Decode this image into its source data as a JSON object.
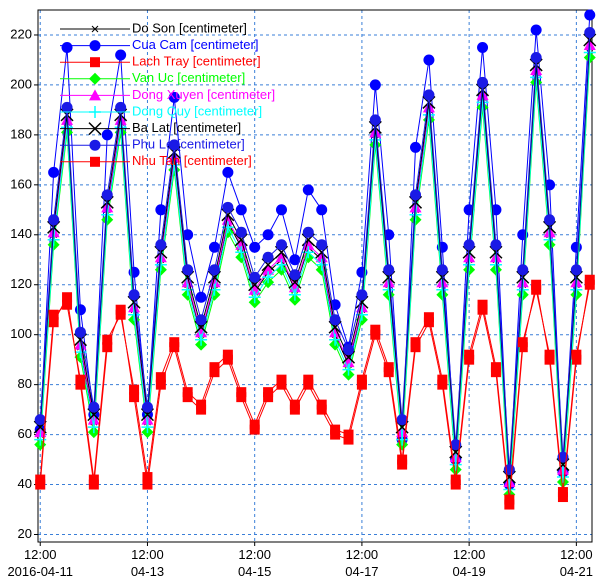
{
  "chart_data": {
    "type": "line",
    "x": [
      "2016-04-11 12:00",
      "2016-04-11 18:00",
      "2016-04-12 00:00",
      "2016-04-12 06:00",
      "2016-04-12 12:00",
      "2016-04-12 18:00",
      "2016-04-13 00:00",
      "2016-04-13 06:00",
      "2016-04-13 12:00",
      "2016-04-13 18:00",
      "2016-04-14 00:00",
      "2016-04-14 06:00",
      "2016-04-14 12:00",
      "2016-04-14 18:00",
      "2016-04-15 00:00",
      "2016-04-15 06:00",
      "2016-04-15 12:00",
      "2016-04-15 18:00",
      "2016-04-16 00:00",
      "2016-04-16 06:00",
      "2016-04-16 12:00",
      "2016-04-16 18:00",
      "2016-04-17 00:00",
      "2016-04-17 06:00",
      "2016-04-17 12:00",
      "2016-04-17 18:00",
      "2016-04-18 00:00",
      "2016-04-18 06:00",
      "2016-04-18 12:00",
      "2016-04-18 18:00",
      "2016-04-19 00:00",
      "2016-04-19 06:00",
      "2016-04-19 12:00",
      "2016-04-19 18:00",
      "2016-04-20 00:00",
      "2016-04-20 06:00",
      "2016-04-20 12:00",
      "2016-04-20 18:00",
      "2016-04-21 00:00",
      "2016-04-21 06:00",
      "2016-04-21 12:00",
      "2016-04-21 18:00"
    ],
    "series": [
      {
        "name": "Do Son [centimeter]",
        "color": "#000000",
        "marker": "x",
        "values": [
          60,
          140,
          185,
          95,
          65,
          150,
          185,
          110,
          65,
          130,
          170,
          120,
          100,
          120,
          145,
          135,
          117,
          125,
          130,
          118,
          135,
          130,
          100,
          88,
          110,
          180,
          120,
          60,
          150,
          190,
          120,
          50,
          130,
          195,
          130,
          40,
          120,
          205,
          140,
          45,
          120,
          215
        ]
      },
      {
        "name": "Cua Cam [centimeter]",
        "color": "#0000ff",
        "marker": "circle",
        "values": [
          62,
          165,
          215,
          110,
          68,
          180,
          212,
          125,
          68,
          150,
          195,
          140,
          115,
          135,
          165,
          150,
          135,
          140,
          150,
          130,
          158,
          150,
          112,
          95,
          125,
          200,
          140,
          58,
          175,
          210,
          135,
          50,
          150,
          215,
          150,
          40,
          140,
          222,
          160,
          45,
          135,
          228
        ]
      },
      {
        "name": "Lach Tray [centimeter]",
        "color": "#ff0000",
        "marker": "square",
        "values": [
          40,
          105,
          115,
          80,
          40,
          95,
          110,
          75,
          40,
          80,
          95,
          75,
          70,
          85,
          90,
          75,
          62,
          75,
          80,
          70,
          80,
          70,
          60,
          58,
          80,
          100,
          85,
          48,
          95,
          105,
          80,
          40,
          90,
          110,
          85,
          32,
          95,
          120,
          90,
          35,
          90,
          122
        ]
      },
      {
        "name": "Van Uc [centimeter]",
        "color": "#00ff00",
        "marker": "diamond",
        "values": [
          56,
          136,
          181,
          91,
          61,
          146,
          181,
          106,
          61,
          126,
          166,
          116,
          96,
          116,
          141,
          131,
          113,
          121,
          126,
          114,
          131,
          126,
          96,
          84,
          106,
          176,
          116,
          56,
          146,
          186,
          116,
          46,
          126,
          191,
          126,
          36,
          116,
          201,
          136,
          41,
          116,
          211
        ]
      },
      {
        "name": "Dong Xuyen [centimeter]",
        "color": "#ff00ff",
        "marker": "triangle",
        "values": [
          61,
          141,
          186,
          96,
          66,
          151,
          186,
          111,
          66,
          131,
          171,
          121,
          101,
          121,
          146,
          136,
          118,
          126,
          131,
          119,
          136,
          131,
          101,
          89,
          111,
          181,
          121,
          61,
          151,
          191,
          121,
          51,
          131,
          196,
          131,
          41,
          121,
          206,
          141,
          46,
          121,
          216
        ]
      },
      {
        "name": "Dong Quy [centimeter]",
        "color": "#00ffff",
        "marker": "plus",
        "values": [
          58,
          138,
          183,
          93,
          63,
          148,
          183,
          108,
          63,
          128,
          168,
          118,
          98,
          118,
          143,
          133,
          115,
          123,
          128,
          116,
          133,
          128,
          98,
          86,
          108,
          178,
          118,
          58,
          148,
          188,
          118,
          48,
          128,
          193,
          128,
          38,
          118,
          203,
          138,
          43,
          118,
          213
        ]
      },
      {
        "name": "Ba Lat [centimeter]",
        "color": "#000000",
        "marker": "bigx",
        "values": [
          63,
          143,
          188,
          98,
          68,
          153,
          188,
          113,
          68,
          133,
          173,
          123,
          103,
          123,
          148,
          138,
          120,
          128,
          133,
          121,
          138,
          133,
          103,
          91,
          113,
          183,
          123,
          63,
          153,
          193,
          123,
          53,
          133,
          198,
          133,
          43,
          123,
          208,
          143,
          48,
          123,
          218
        ]
      },
      {
        "name": "Phu Le [centimeter]",
        "color": "#1a1ae6",
        "marker": "circle",
        "values": [
          66,
          146,
          191,
          101,
          71,
          156,
          191,
          116,
          71,
          136,
          176,
          126,
          106,
          126,
          151,
          141,
          123,
          131,
          136,
          124,
          141,
          136,
          106,
          94,
          116,
          186,
          126,
          66,
          156,
          196,
          126,
          56,
          136,
          201,
          136,
          46,
          126,
          211,
          146,
          51,
          126,
          221
        ]
      },
      {
        "name": "Nhu Tan [centimeter]",
        "color": "#ff0000",
        "marker": "square",
        "values": [
          42,
          108,
          112,
          82,
          42,
          98,
          108,
          78,
          43,
          83,
          97,
          77,
          72,
          87,
          92,
          77,
          64,
          77,
          82,
          72,
          82,
          72,
          62,
          60,
          82,
          102,
          87,
          50,
          97,
          107,
          82,
          42,
          92,
          112,
          87,
          34,
          97,
          118,
          92,
          37,
          92,
          120
        ]
      }
    ],
    "xlim": [
      "2016-04-11 11:00",
      "2016-04-21 19:00"
    ],
    "xticks": [
      {
        "value": "2016-04-11 12:00",
        "label": "12:00\n2016-04-11"
      },
      {
        "value": "2016-04-13 12:00",
        "label": "12:00\n04-13"
      },
      {
        "value": "2016-04-15 12:00",
        "label": "12:00\n04-15"
      },
      {
        "value": "2016-04-17 12:00",
        "label": "12:00\n04-17"
      },
      {
        "value": "2016-04-19 12:00",
        "label": "12:00\n04-19"
      },
      {
        "value": "2016-04-21 12:00",
        "label": "12:00\n04-21"
      }
    ],
    "ylim": [
      17,
      230
    ],
    "yticks": [
      20,
      40,
      60,
      80,
      100,
      120,
      140,
      160,
      180,
      200,
      220
    ],
    "grid": true,
    "legend": "top-left"
  }
}
